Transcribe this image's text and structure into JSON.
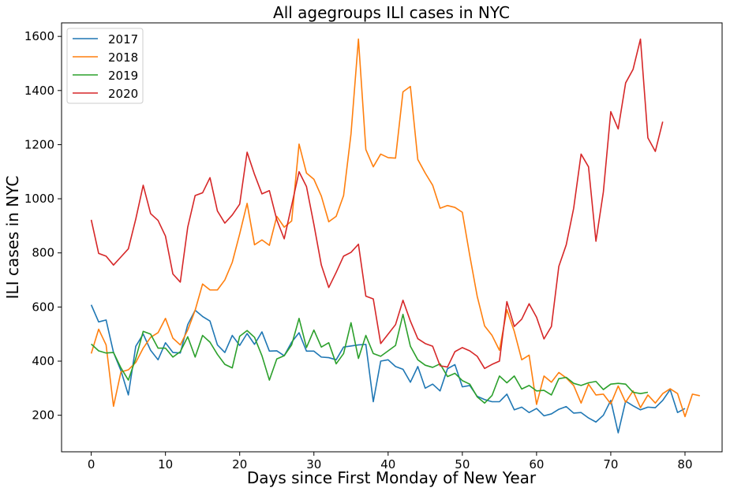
{
  "chart_data": {
    "type": "line",
    "title": "All agegroups ILI cases in NYC",
    "xlabel": "Days since First Monday of New Year",
    "ylabel": "ILI cases in NYC",
    "xlim": [
      -4,
      85
    ],
    "ylim": [
      65,
      1650
    ],
    "xticks": [
      0,
      10,
      20,
      30,
      40,
      50,
      60,
      70,
      80
    ],
    "yticks": [
      200,
      400,
      600,
      800,
      1000,
      1200,
      1400,
      1600
    ],
    "grid": false,
    "legend_position": "top-left",
    "series": [
      {
        "name": "2017",
        "color": "#1f77b4",
        "values": [
          608,
          545,
          552,
          432,
          365,
          275,
          455,
          500,
          440,
          405,
          468,
          432,
          430,
          535,
          588,
          565,
          548,
          460,
          432,
          495,
          458,
          502,
          462,
          508,
          437,
          438,
          420,
          470,
          505,
          437,
          437,
          415,
          413,
          405,
          452,
          456,
          460,
          462,
          250,
          400,
          405,
          380,
          370,
          322,
          380,
          300,
          315,
          290,
          372,
          387,
          305,
          310,
          270,
          258,
          250,
          250,
          278,
          220,
          230,
          210,
          225,
          198,
          205,
          222,
          232,
          208,
          210,
          190,
          175,
          200,
          255,
          135,
          252,
          235,
          220,
          230,
          228,
          255,
          295,
          210,
          225
        ]
      },
      {
        "name": "2018",
        "color": "#ff7f0e",
        "values": [
          428,
          518,
          460,
          233,
          360,
          368,
          395,
          448,
          488,
          505,
          558,
          485,
          460,
          515,
          588,
          685,
          663,
          663,
          700,
          765,
          870,
          983,
          830,
          848,
          828,
          935,
          895,
          918,
          1202,
          1095,
          1072,
          1010,
          915,
          935,
          1012,
          1240,
          1590,
          1182,
          1118,
          1165,
          1152,
          1150,
          1395,
          1415,
          1145,
          1095,
          1050,
          965,
          975,
          968,
          950,
          790,
          640,
          530,
          495,
          440,
          590,
          510,
          405,
          422,
          240,
          345,
          322,
          358,
          338,
          310,
          245,
          315,
          275,
          278,
          242,
          308,
          248,
          290,
          228,
          275,
          245,
          280,
          298,
          280,
          195,
          278,
          272
        ]
      },
      {
        "name": "2019",
        "color": "#2ca02c",
        "values": [
          463,
          438,
          430,
          432,
          375,
          330,
          410,
          510,
          500,
          448,
          448,
          415,
          435,
          490,
          415,
          495,
          470,
          425,
          388,
          375,
          492,
          513,
          488,
          420,
          330,
          408,
          420,
          460,
          558,
          450,
          515,
          452,
          468,
          390,
          428,
          542,
          410,
          495,
          428,
          418,
          438,
          458,
          573,
          455,
          405,
          385,
          377,
          390,
          343,
          355,
          328,
          315,
          268,
          245,
          273,
          345,
          320,
          345,
          297,
          310,
          290,
          292,
          275,
          335,
          340,
          318,
          310,
          320,
          325,
          295,
          315,
          318,
          315,
          285,
          280,
          285
        ]
      },
      {
        "name": "2020",
        "color": "#d62728",
        "values": [
          922,
          798,
          788,
          755,
          785,
          815,
          925,
          1050,
          945,
          920,
          862,
          722,
          692,
          895,
          1012,
          1022,
          1078,
          955,
          910,
          940,
          980,
          1172,
          1090,
          1018,
          1030,
          922,
          852,
          975,
          1100,
          1045,
          905,
          755,
          672,
          728,
          788,
          802,
          832,
          640,
          630,
          465,
          500,
          535,
          625,
          548,
          483,
          465,
          455,
          383,
          378,
          435,
          450,
          438,
          418,
          373,
          388,
          400,
          620,
          528,
          555,
          612,
          562,
          482,
          528,
          750,
          830,
          965,
          1165,
          1118,
          843,
          1025,
          1322,
          1258,
          1428,
          1478,
          1590,
          1225,
          1175,
          1285
        ]
      }
    ]
  }
}
